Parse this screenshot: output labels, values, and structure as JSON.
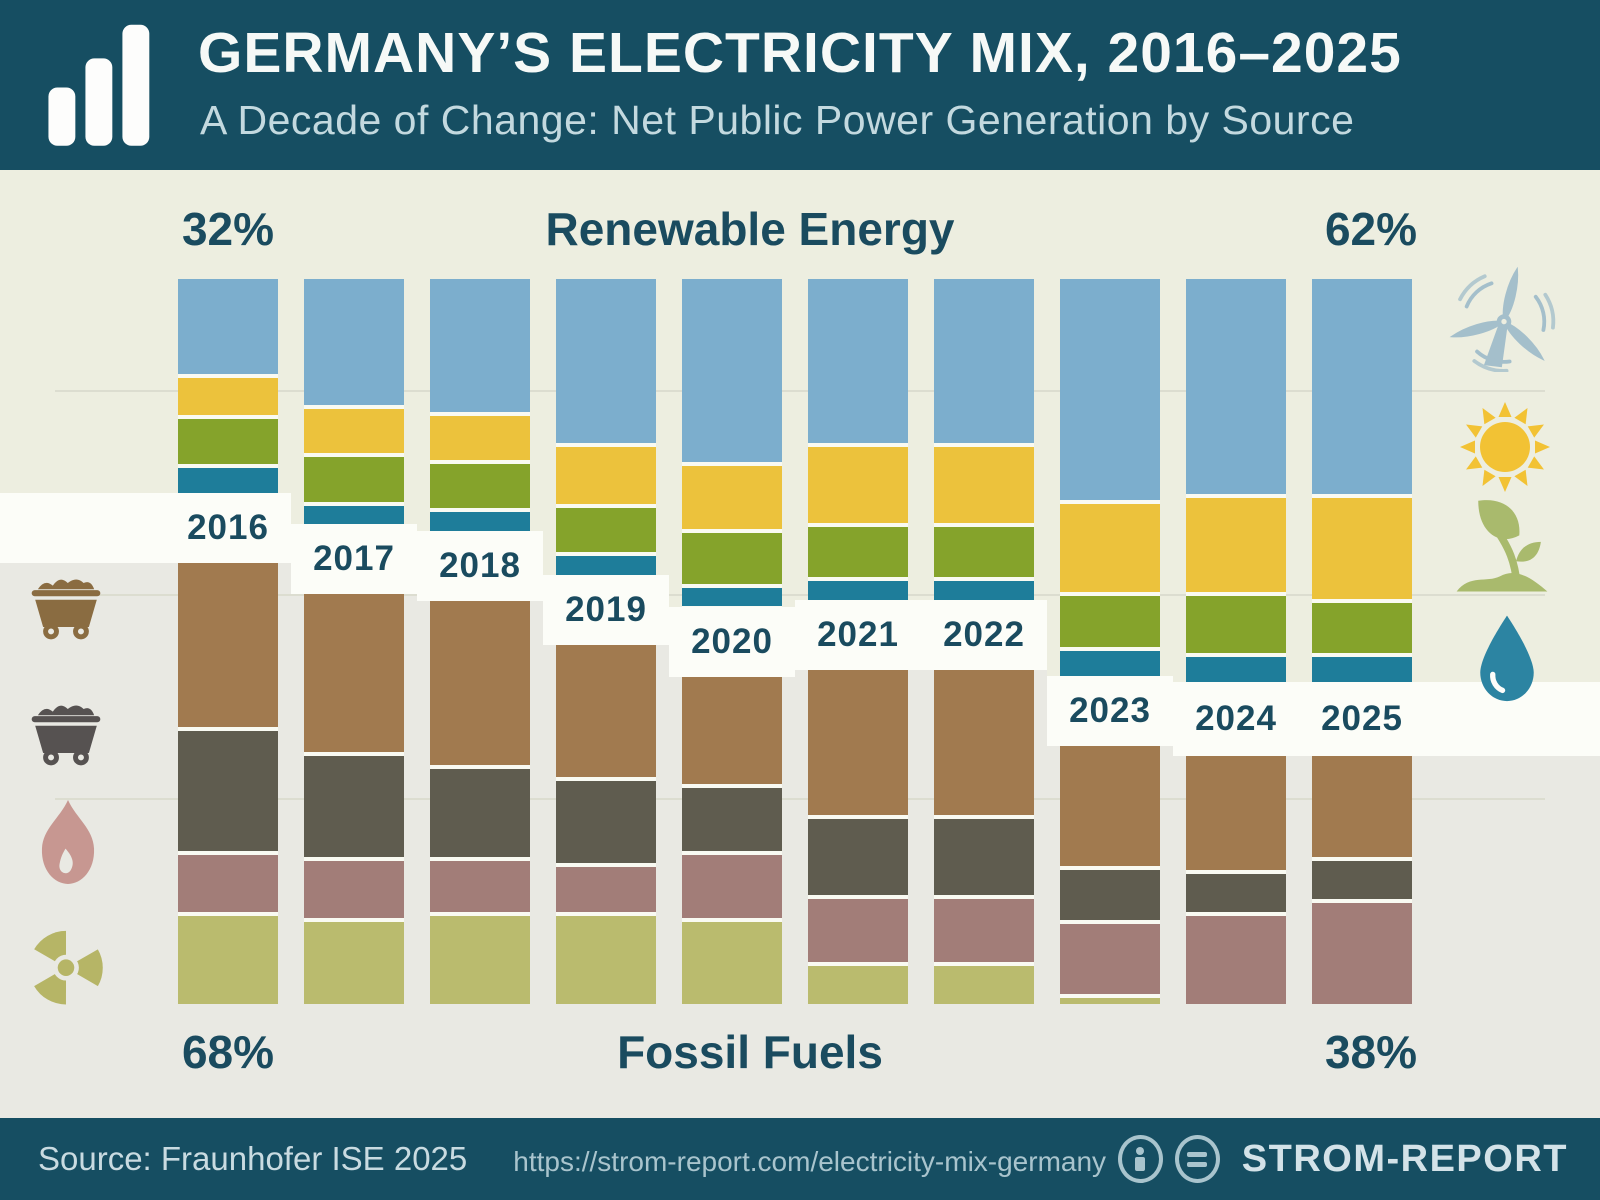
{
  "header": {
    "title": "GERMANY’S ELECTRICITY MIX, 2016–2025",
    "subtitle": "A Decade of Change: Net Public Power Generation by Source",
    "logo_icon": "bar-chart-logo"
  },
  "chart": {
    "top_left": "32%",
    "top_center": "Renewable Energy",
    "top_right": "62%",
    "bottom_left": "68%",
    "bottom_center": "Fossil Fuels",
    "bottom_right": "38%"
  },
  "footer": {
    "source": "Source: Fraunhofer ISE 2025",
    "url": "https://strom-report.com/electricity-mix-germany",
    "brand": "STROM-REPORT",
    "icons": [
      "info-circle-icon",
      "equals-circle-icon"
    ]
  },
  "colors": {
    "header_bg": "#164e62",
    "title": "#f6f9f7",
    "subtitle": "#c3d9df",
    "zone_renewable_bg": "#edeee0",
    "zone_fossil_bg": "#e9e9e3",
    "band": "#fcfdf8",
    "bar_gap": "#f9faf2",
    "label": "#1a4b5f",
    "gridline": "#dcddd0",
    "footer_bg": "#164e62",
    "footer_text": "#c9dbe1",
    "footer_url": "#a9c4cd",
    "brand": "#d3e2e8"
  },
  "source_icons": {
    "left": [
      {
        "name": "lignite-cart-icon",
        "color": "#8a6c41"
      },
      {
        "name": "hard-coal-cart-icon",
        "color": "#565251"
      },
      {
        "name": "gas-flame-icon",
        "color": "#c79791"
      },
      {
        "name": "nuclear-radiation-icon",
        "color": "#b6b566"
      }
    ],
    "right": [
      {
        "name": "wind-turbine-icon",
        "color": "#a4bfcb"
      },
      {
        "name": "sun-icon",
        "color": "#f2c234"
      },
      {
        "name": "biomass-sprout-icon",
        "color": "#a9ba6d"
      },
      {
        "name": "water-drop-icon",
        "color": "#2c84a2"
      }
    ]
  },
  "chart_data": {
    "type": "bar",
    "variant": "100%-stacked diverging columns; renewables hang from the top, fossil + nuclear rise from the bottom, white year band marks the split",
    "unit": "% share of net public power generation (visually estimated, per-segment values are not printed on the chart)",
    "title": "Germany’s Electricity Mix, 2016–2025",
    "categories": [
      "2016",
      "2017",
      "2018",
      "2019",
      "2020",
      "2021",
      "2022",
      "2023",
      "2024",
      "2025"
    ],
    "series": [
      {
        "name": "Wind",
        "group": "renewable",
        "color": "#7caecd",
        "values": [
          15,
          20,
          21,
          26,
          29,
          26,
          26,
          35,
          34,
          34
        ]
      },
      {
        "name": "Solar",
        "group": "renewable",
        "color": "#ecc23c",
        "values": [
          6,
          7,
          7,
          9,
          10,
          12,
          12,
          14,
          15,
          16
        ]
      },
      {
        "name": "Biomass",
        "group": "renewable",
        "color": "#85a32b",
        "values": [
          7,
          7,
          7,
          7,
          8,
          8,
          8,
          8,
          9,
          8
        ]
      },
      {
        "name": "Hydro",
        "group": "renewable",
        "color": "#1e7d9a",
        "values": [
          4,
          3,
          3,
          3,
          3,
          3,
          3,
          4,
          4,
          4
        ]
      },
      {
        "name": "Lignite",
        "group": "fossil",
        "color": "#a17a4f",
        "values": [
          26,
          25,
          26,
          21,
          17,
          23,
          23,
          19,
          18,
          16
        ]
      },
      {
        "name": "Hard coal",
        "group": "fossil",
        "color": "#5f5c4f",
        "values": [
          19,
          16,
          14,
          13,
          10,
          12,
          12,
          8,
          6,
          6
        ]
      },
      {
        "name": "Natural gas",
        "group": "fossil",
        "color": "#a27d78",
        "values": [
          9,
          9,
          8,
          7,
          10,
          10,
          10,
          11,
          14,
          16
        ]
      },
      {
        "name": "Nuclear",
        "group": "fossil",
        "color": "#babb6e",
        "values": [
          14,
          13,
          14,
          14,
          13,
          6,
          6,
          1,
          0,
          0
        ]
      }
    ],
    "renewable_share_pct": [
      32,
      37,
      38,
      45,
      50,
      49,
      49,
      61,
      62,
      62
    ],
    "fossil_share_pct": [
      68,
      63,
      62,
      55,
      50,
      51,
      51,
      39,
      38,
      38
    ],
    "annotations": {
      "renewable_start": "32%",
      "renewable_end": "62%",
      "fossil_start": "68%",
      "fossil_end": "38%"
    },
    "legend_position": "icons: fossil sources on the left margin, renewable sources on the right margin",
    "grid": "three faint horizontal gridlines"
  }
}
